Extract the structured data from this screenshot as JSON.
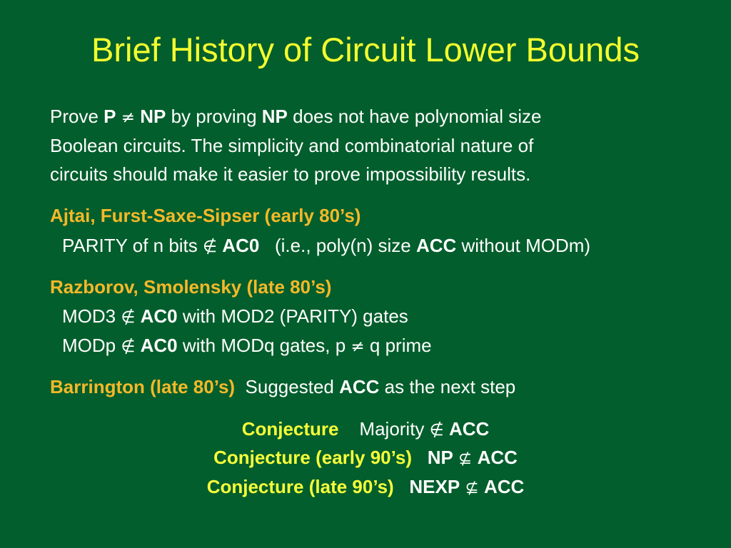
{
  "title": "Brief History of Circuit Lower Bounds",
  "intro": {
    "line1": {
      "a": "Prove ",
      "p": "P",
      "neq": "≠",
      "np": "NP",
      "b": " by proving ",
      "np2": "NP",
      "c": " does not have polynomial size"
    },
    "line2": "Boolean circuits. The simplicity and combinatorial nature of",
    "line3": "circuits should make it easier to prove impossibility results."
  },
  "ajtai": {
    "heading": "Ajtai, Furst-Saxe-Sipser (early 80’s)",
    "line": {
      "a": "PARITY of n bits ",
      "notin": "∉",
      "ac0": "AC0",
      "b": "   (i.e., poly(n) size ",
      "acc": "ACC",
      "c": " without MODm)"
    }
  },
  "razborov": {
    "heading": "Razborov, Smolensky (late 80’s)",
    "line1": {
      "a": "MOD3 ",
      "notin": "∉",
      "ac0": "AC0",
      "b": " with MOD2 (PARITY) gates"
    },
    "line2": {
      "a": "MODp ",
      "notin": "∉",
      "ac0": "AC0",
      "b": " with MODq gates, p ",
      "neq": "≠",
      "c": " q prime"
    }
  },
  "barrington": {
    "heading": "Barrington (late 80’s)",
    "a": "Suggested ",
    "acc": "ACC",
    "b": " as the next step"
  },
  "conjectures": [
    {
      "label": "Conjecture",
      "a": "Majority ",
      "rel": "∉",
      "b": "ACC"
    },
    {
      "label": "Conjecture (early 90’s)",
      "a": "NP",
      "rel": "⊈",
      "b": "ACC"
    },
    {
      "label": "Conjecture (late 90’s)",
      "a": "NEXP",
      "rel": "⊈",
      "b": "ACC"
    }
  ]
}
